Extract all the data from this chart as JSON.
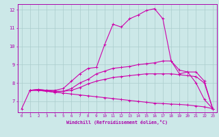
{
  "xlabel": "Windchill (Refroidissement éolien,°C)",
  "line_color": "#cc00aa",
  "bg_color": "#cce8e8",
  "grid_color": "#aacccc",
  "text_color": "#aa00aa",
  "xlim": [
    -0.5,
    23.5
  ],
  "ylim": [
    6.4,
    12.3
  ],
  "xticks": [
    0,
    1,
    2,
    3,
    4,
    5,
    6,
    7,
    8,
    9,
    10,
    11,
    12,
    13,
    14,
    15,
    16,
    17,
    18,
    19,
    20,
    21,
    22,
    23
  ],
  "yticks": [
    7,
    8,
    9,
    10,
    11,
    12
  ],
  "lines": [
    {
      "x": [
        0,
        1,
        2,
        3,
        4,
        5,
        6,
        7,
        8,
        9,
        10,
        11,
        12,
        13,
        14,
        15,
        16,
        17,
        18,
        19,
        20,
        21,
        22,
        23
      ],
      "y": [
        6.6,
        7.6,
        7.65,
        7.6,
        7.6,
        7.7,
        8.1,
        8.5,
        8.8,
        8.85,
        10.1,
        11.2,
        11.05,
        11.5,
        11.7,
        11.95,
        12.05,
        11.5,
        9.2,
        8.7,
        8.6,
        8.0,
        7.1,
        6.6
      ]
    },
    {
      "x": [
        1,
        2,
        3,
        4,
        5,
        6,
        7,
        8,
        9,
        10,
        11,
        12,
        13,
        14,
        15,
        16,
        17,
        18,
        19,
        20,
        21,
        22,
        23
      ],
      "y": [
        7.6,
        7.65,
        7.6,
        7.55,
        7.55,
        7.7,
        8.0,
        8.2,
        8.5,
        8.65,
        8.8,
        8.85,
        8.9,
        9.0,
        9.05,
        9.1,
        9.2,
        9.2,
        8.5,
        8.6,
        8.6,
        8.1,
        6.6
      ]
    },
    {
      "x": [
        1,
        2,
        3,
        4,
        5,
        6,
        7,
        8,
        9,
        10,
        11,
        12,
        13,
        14,
        15,
        16,
        17,
        18,
        19,
        20,
        21,
        22,
        23
      ],
      "y": [
        7.6,
        7.6,
        7.55,
        7.5,
        7.55,
        7.6,
        7.75,
        7.95,
        8.1,
        8.2,
        8.3,
        8.35,
        8.4,
        8.45,
        8.5,
        8.5,
        8.5,
        8.5,
        8.45,
        8.4,
        8.35,
        8.0,
        6.6
      ]
    },
    {
      "x": [
        1,
        2,
        3,
        4,
        5,
        6,
        7,
        8,
        9,
        10,
        11,
        12,
        13,
        14,
        15,
        16,
        17,
        18,
        19,
        20,
        21,
        22,
        23
      ],
      "y": [
        7.6,
        7.6,
        7.55,
        7.5,
        7.45,
        7.4,
        7.35,
        7.3,
        7.25,
        7.2,
        7.15,
        7.1,
        7.05,
        7.0,
        6.95,
        6.9,
        6.88,
        6.85,
        6.83,
        6.8,
        6.75,
        6.7,
        6.6
      ]
    }
  ]
}
